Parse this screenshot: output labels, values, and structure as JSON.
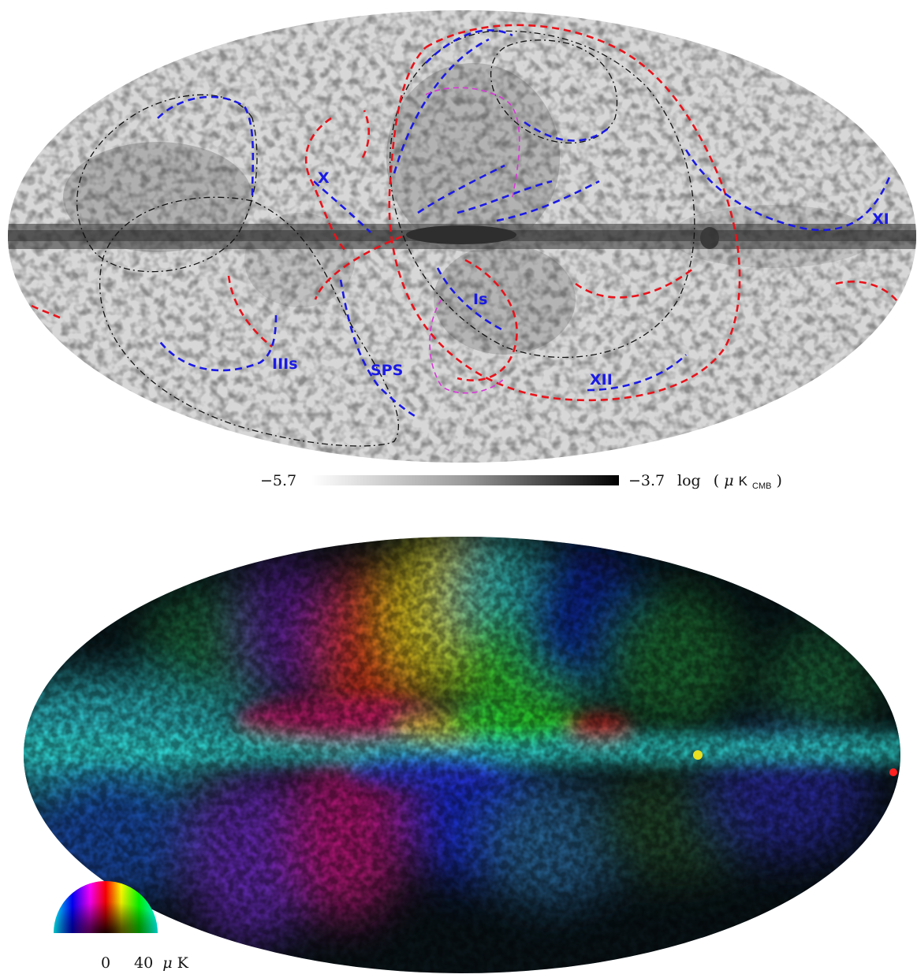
{
  "top_panel": {
    "region_labels": [
      "X",
      "XI",
      "Is",
      "IIIs",
      "SPS",
      "XII"
    ],
    "colorbar": {
      "min_label": "−5.7",
      "max_label": "−3.7",
      "unit_prefix": "log",
      "unit_open": "(",
      "unit_mu": "μ",
      "unit_K": "K",
      "unit_sub": "CMB",
      "unit_close": ")"
    },
    "colors": {
      "loop_dashed_red": "#e8131a",
      "loop_dashed_blue": "#1a1ae6",
      "loop_dashed_magenta": "#d838d8",
      "loop_dashdot_black": "#111111",
      "label_color": "#1a1ae6"
    }
  },
  "bottom_panel": {
    "wheel_scale": {
      "zero_label": "0",
      "max_label": "40",
      "unit_mu": "μ",
      "unit_K": "K"
    }
  }
}
